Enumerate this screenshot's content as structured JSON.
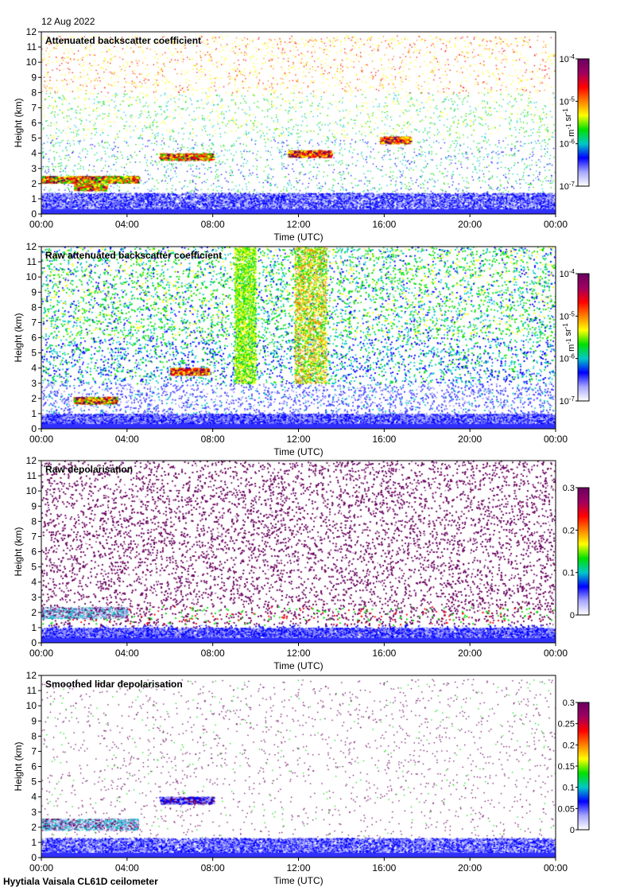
{
  "date_label": "12 Aug 2022",
  "footer_label": "Hyytiala Vaisala CL61D ceilometer",
  "colormap": [
    "#ffffff",
    "#a6a6ff",
    "#0000ff",
    "#00c8c8",
    "#00e000",
    "#ffff00",
    "#ff8000",
    "#ff0000",
    "#a00060",
    "#6a0060"
  ],
  "chart_data": [
    {
      "type": "heatmap",
      "title": "Attenuated backscatter coefficient",
      "xlabel": "Time (UTC)",
      "ylabel": "Height (km)",
      "x_ticks": [
        "00:00",
        "04:00",
        "08:00",
        "12:00",
        "16:00",
        "20:00",
        "00:00"
      ],
      "xlim_hours": [
        0,
        24
      ],
      "y_ticks": [
        0,
        1,
        2,
        3,
        4,
        5,
        6,
        7,
        8,
        9,
        10,
        11,
        12
      ],
      "ylim_km": [
        0,
        12
      ],
      "colorbar": {
        "scale": "log",
        "range": [
          1e-07,
          0.0001
        ],
        "tick_labels": [
          {
            "base": "10",
            "exp": "-7"
          },
          {
            "base": "10",
            "exp": "-6"
          },
          {
            "base": "10",
            "exp": "-5"
          },
          {
            "base": "10",
            "exp": "-4"
          }
        ],
        "unit_parts": [
          {
            "base": "m",
            "exp": "-1"
          },
          {
            "base": " sr",
            "exp": "-1"
          }
        ]
      },
      "background": "sparse",
      "features": [
        {
          "kind": "cloud_layer",
          "t_start": 0.0,
          "t_end": 4.5,
          "height_km": 2.3,
          "intensity": "high"
        },
        {
          "kind": "cloud_layer",
          "t_start": 1.5,
          "t_end": 3.0,
          "height_km": 1.8,
          "intensity": "high"
        },
        {
          "kind": "cloud_layer",
          "t_start": 5.5,
          "t_end": 8.0,
          "height_km": 3.8,
          "intensity": "high"
        },
        {
          "kind": "cloud_layer",
          "t_start": 11.5,
          "t_end": 13.5,
          "height_km": 4.0,
          "intensity": "medium"
        },
        {
          "kind": "cloud_layer",
          "t_start": 15.8,
          "t_end": 17.2,
          "height_km": 4.9,
          "intensity": "medium"
        },
        {
          "kind": "boundary_layer",
          "t_start": 0.0,
          "t_end": 24.0,
          "top_km": 1.4
        }
      ]
    },
    {
      "type": "heatmap",
      "title": "Raw attenuated backscatter coefficient",
      "xlabel": "Time (UTC)",
      "ylabel": "Height (km)",
      "x_ticks": [
        "00:00",
        "04:00",
        "08:00",
        "12:00",
        "16:00",
        "20:00",
        "00:00"
      ],
      "xlim_hours": [
        0,
        24
      ],
      "y_ticks": [
        0,
        1,
        2,
        3,
        4,
        5,
        6,
        7,
        8,
        9,
        10,
        11,
        12
      ],
      "ylim_km": [
        0,
        12
      ],
      "colorbar": {
        "scale": "log",
        "range": [
          1e-07,
          0.0001
        ],
        "tick_labels": [
          {
            "base": "10",
            "exp": "-7"
          },
          {
            "base": "10",
            "exp": "-6"
          },
          {
            "base": "10",
            "exp": "-5"
          },
          {
            "base": "10",
            "exp": "-4"
          }
        ],
        "unit_parts": [
          {
            "base": "m",
            "exp": "-1"
          },
          {
            "base": " sr",
            "exp": "-1"
          }
        ]
      },
      "background": "noisy",
      "features": [
        {
          "kind": "cloud_layer",
          "t_start": 1.5,
          "t_end": 3.5,
          "height_km": 1.9,
          "intensity": "high"
        },
        {
          "kind": "cloud_layer",
          "t_start": 6.0,
          "t_end": 7.8,
          "height_km": 3.8,
          "intensity": "medium"
        },
        {
          "kind": "noise_column",
          "t_start": 9.0,
          "t_end": 10.0,
          "intensity": "medium"
        },
        {
          "kind": "noise_column",
          "t_start": 11.8,
          "t_end": 13.3,
          "intensity": "high"
        },
        {
          "kind": "boundary_layer",
          "t_start": 0.0,
          "t_end": 24.0,
          "top_km": 1.0
        }
      ]
    },
    {
      "type": "heatmap",
      "title": "Raw depolarisation",
      "xlabel": "Time (UTC)",
      "ylabel": "Height (km)",
      "x_ticks": [
        "00:00",
        "04:00",
        "08:00",
        "12:00",
        "16:00",
        "20:00",
        "00:00"
      ],
      "xlim_hours": [
        0,
        24
      ],
      "y_ticks": [
        0,
        1,
        2,
        3,
        4,
        5,
        6,
        7,
        8,
        9,
        10,
        11,
        12
      ],
      "ylim_km": [
        0,
        12
      ],
      "colorbar": {
        "scale": "linear",
        "range": [
          0,
          0.3
        ],
        "tick_labels": [
          "0",
          "0.1",
          "0.2",
          "0.3"
        ]
      },
      "background": "saturated",
      "features": [
        {
          "kind": "low_depol_layer",
          "t_start": 0.0,
          "t_end": 4.0,
          "height_km": 2.0
        },
        {
          "kind": "boundary_layer",
          "t_start": 0.0,
          "t_end": 24.0,
          "top_km": 1.0
        }
      ]
    },
    {
      "type": "heatmap",
      "title": "Smoothed lidar depolarisation",
      "xlabel": "Time (UTC)",
      "ylabel": "Height (km)",
      "x_ticks": [
        "00:00",
        "04:00",
        "08:00",
        "12:00",
        "16:00",
        "20:00",
        "00:00"
      ],
      "xlim_hours": [
        0,
        24
      ],
      "y_ticks": [
        0,
        1,
        2,
        3,
        4,
        5,
        6,
        7,
        8,
        9,
        10,
        11,
        12
      ],
      "ylim_km": [
        0,
        12
      ],
      "colorbar": {
        "scale": "linear",
        "range": [
          0,
          0.3
        ],
        "tick_labels": [
          "0",
          "0.05",
          "0.1",
          "0.15",
          "0.2",
          "0.25",
          "0.3"
        ]
      },
      "background": "sparse_purple",
      "features": [
        {
          "kind": "low_depol_layer",
          "t_start": 0.0,
          "t_end": 4.5,
          "height_km": 2.2
        },
        {
          "kind": "cloud_layer",
          "t_start": 5.5,
          "t_end": 8.0,
          "height_km": 3.8,
          "intensity": "low"
        },
        {
          "kind": "boundary_layer",
          "t_start": 0.0,
          "t_end": 24.0,
          "top_km": 1.3
        }
      ]
    }
  ]
}
